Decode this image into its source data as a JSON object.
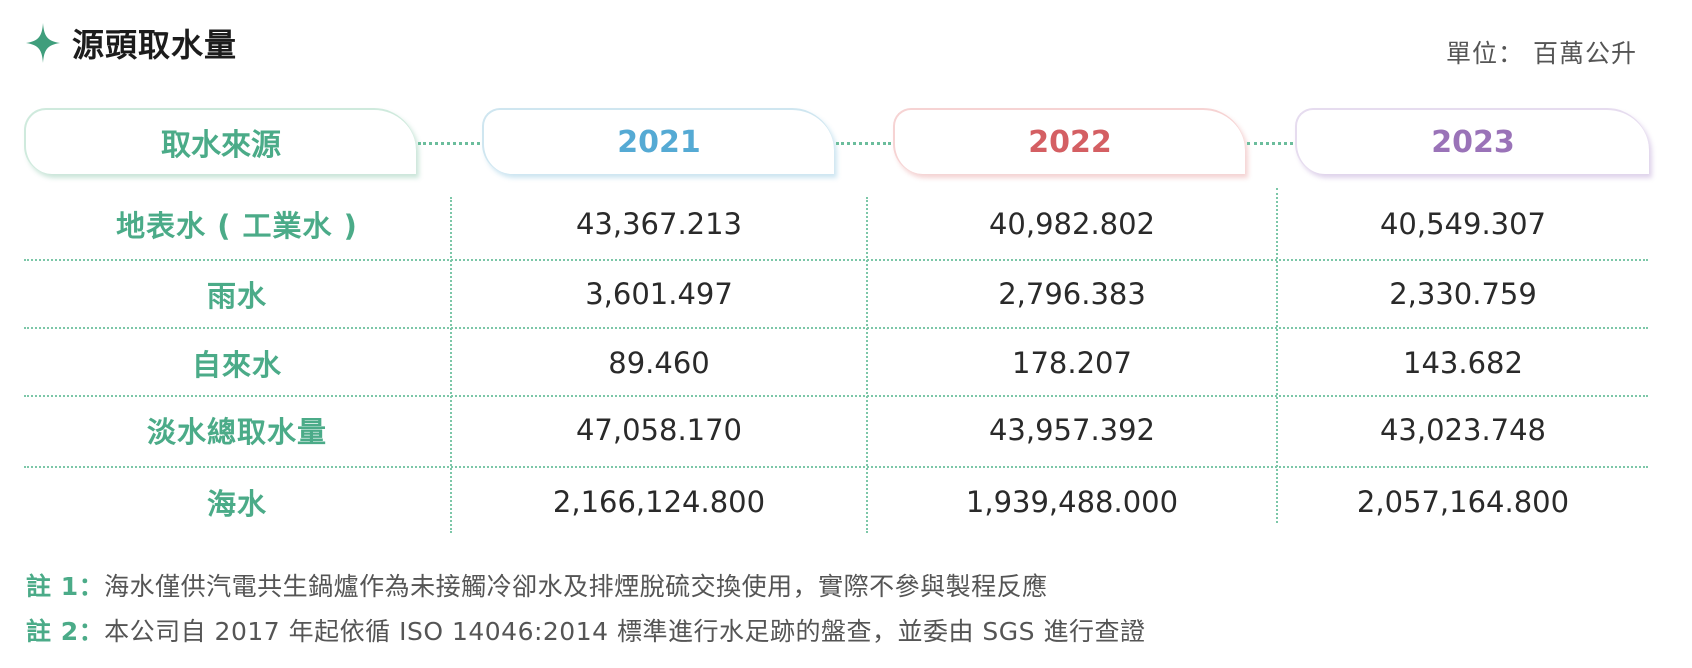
{
  "title": "源頭取水量",
  "unit": "單位： 百萬公升",
  "header": {
    "source": "取水來源",
    "years": [
      "2021",
      "2022",
      "2023"
    ],
    "year_colors": [
      "#55aad4",
      "#d45f63",
      "#9a73b8"
    ]
  },
  "rows": [
    {
      "label": "地表水 ( 工業水 )",
      "values": [
        "43,367.213",
        "40,982.802",
        "40,549.307"
      ]
    },
    {
      "label": "雨水",
      "values": [
        "3,601.497",
        "2,796.383",
        "2,330.759"
      ]
    },
    {
      "label": "自來水",
      "values": [
        "89.460",
        "178.207",
        "143.682"
      ]
    },
    {
      "label": "淡水總取水量",
      "values": [
        "47,058.170",
        "43,957.392",
        "43,023.748"
      ]
    },
    {
      "label": "海水",
      "values": [
        "2,166,124.800",
        "1,939,488.000",
        "2,057,164.800"
      ]
    }
  ],
  "notes": [
    {
      "key": "註 1：",
      "text": "海水僅供汽電共生鍋爐作為未接觸冷卻水及排煙脫硫交換使用，實際不參與製程反應"
    },
    {
      "key": "註 2：",
      "text": "本公司自 2017 年起依循 ISO 14046:2014 標準進行水足跡的盤查，並委由 SGS 進行查證"
    }
  ],
  "icon": "sparkle-icon",
  "accent_color": "#4bab88"
}
